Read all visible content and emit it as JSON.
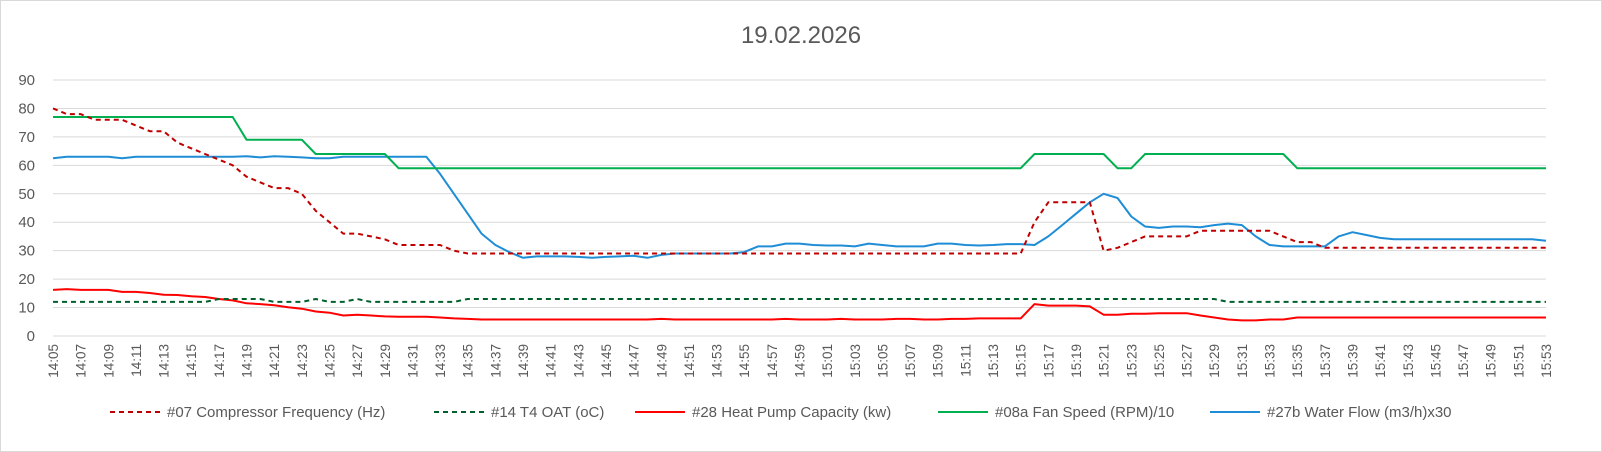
{
  "chart_data": {
    "type": "line",
    "title": "19.02.2026",
    "xlabel": "",
    "ylabel": "",
    "ylim": [
      0,
      90
    ],
    "yticks": [
      0,
      10,
      20,
      30,
      40,
      50,
      60,
      70,
      80,
      90
    ],
    "grid": true,
    "legend_position": "bottom",
    "x": [
      "14:05",
      "14:06",
      "14:07",
      "14:08",
      "14:09",
      "14:10",
      "14:11",
      "14:12",
      "14:13",
      "14:14",
      "14:15",
      "14:16",
      "14:17",
      "14:18",
      "14:19",
      "14:20",
      "14:21",
      "14:22",
      "14:23",
      "14:24",
      "14:25",
      "14:26",
      "14:27",
      "14:28",
      "14:29",
      "14:30",
      "14:31",
      "14:32",
      "14:33",
      "14:34",
      "14:35",
      "14:36",
      "14:37",
      "14:38",
      "14:39",
      "14:40",
      "14:41",
      "14:42",
      "14:43",
      "14:44",
      "14:45",
      "14:46",
      "14:47",
      "14:48",
      "14:49",
      "14:50",
      "14:51",
      "14:52",
      "14:53",
      "14:54",
      "14:55",
      "14:56",
      "14:57",
      "14:58",
      "14:59",
      "15:00",
      "15:01",
      "15:02",
      "15:03",
      "15:04",
      "15:05",
      "15:06",
      "15:07",
      "15:08",
      "15:09",
      "15:10",
      "15:11",
      "15:12",
      "15:13",
      "15:14",
      "15:15",
      "15:16",
      "15:17",
      "15:18",
      "15:19",
      "15:20",
      "15:21",
      "15:22",
      "15:23",
      "15:24",
      "15:25",
      "15:26",
      "15:27",
      "15:28",
      "15:29",
      "15:30",
      "15:31",
      "15:32",
      "15:33",
      "15:34",
      "15:35",
      "15:36",
      "15:37",
      "15:38",
      "15:39",
      "15:40",
      "15:41",
      "15:42",
      "15:43",
      "15:44",
      "15:45",
      "15:46",
      "15:47",
      "15:48",
      "15:49",
      "15:50",
      "15:51",
      "15:52",
      "15:53"
    ],
    "xtick_labels": [
      "14:05",
      "14:07",
      "14:09",
      "14:11",
      "14:13",
      "14:15",
      "14:17",
      "14:19",
      "14:21",
      "14:23",
      "14:25",
      "14:27",
      "14:29",
      "14:31",
      "14:33",
      "14:35",
      "14:37",
      "14:39",
      "14:41",
      "14:43",
      "14:45",
      "14:47",
      "14:49",
      "14:51",
      "14:53",
      "14:55",
      "14:57",
      "14:59",
      "15:01",
      "15:03",
      "15:05",
      "15:07",
      "15:09",
      "15:11",
      "15:13",
      "15:15",
      "15:17",
      "15:19",
      "15:21",
      "15:23",
      "15:25",
      "15:27",
      "15:29",
      "15:31",
      "15:33",
      "15:35",
      "15:37",
      "15:39",
      "15:41",
      "15:43",
      "15:45",
      "15:47",
      "15:49",
      "15:51",
      "15:53"
    ],
    "series": [
      {
        "name": "#07 Compressor  Frequency (Hz)",
        "color": "#c00000",
        "dash": "dashed",
        "values": [
          80,
          78,
          78,
          76,
          76,
          76,
          74,
          72,
          72,
          68,
          66,
          64,
          62,
          60,
          56,
          54,
          52,
          52,
          50,
          44,
          40,
          36,
          36,
          35,
          34,
          32,
          32,
          32,
          32,
          30,
          29,
          29,
          29,
          29,
          29,
          29,
          29,
          29,
          29,
          29,
          29,
          29,
          29,
          29,
          29,
          29,
          29,
          29,
          29,
          29,
          29,
          29,
          29,
          29,
          29,
          29,
          29,
          29,
          29,
          29,
          29,
          29,
          29,
          29,
          29,
          29,
          29,
          29,
          29,
          29,
          29,
          40,
          47,
          47,
          47,
          47,
          30,
          31,
          33,
          35,
          35,
          35,
          35,
          37,
          37,
          37,
          37,
          37,
          37,
          35,
          33,
          33,
          31,
          31,
          31,
          31,
          31,
          31,
          31,
          31,
          31,
          31,
          31,
          31,
          31,
          31,
          31,
          31,
          31
        ]
      },
      {
        "name": "#14 T4 OAT (oC)",
        "color": "#00602b",
        "dash": "dashed",
        "values": [
          12,
          12,
          12,
          12,
          12,
          12,
          12,
          12,
          12,
          12,
          12,
          12,
          13,
          13,
          13,
          13,
          12,
          12,
          12,
          13,
          12,
          12,
          13,
          12,
          12,
          12,
          12,
          12,
          12,
          12,
          13,
          13,
          13,
          13,
          13,
          13,
          13,
          13,
          13,
          13,
          13,
          13,
          13,
          13,
          13,
          13,
          13,
          13,
          13,
          13,
          13,
          13,
          13,
          13,
          13,
          13,
          13,
          13,
          13,
          13,
          13,
          13,
          13,
          13,
          13,
          13,
          13,
          13,
          13,
          13,
          13,
          13,
          13,
          13,
          13,
          13,
          13,
          13,
          13,
          13,
          13,
          13,
          13,
          13,
          13,
          12,
          12,
          12,
          12,
          12,
          12,
          12,
          12,
          12,
          12,
          12,
          12,
          12,
          12,
          12,
          12,
          12,
          12,
          12,
          12,
          12,
          12,
          12,
          12
        ]
      },
      {
        "name": "#28 Heat Pump Capacity (kw)",
        "color": "#ff0000",
        "dash": "solid",
        "values": [
          16.2,
          16.5,
          16.2,
          16.2,
          16.2,
          15.5,
          15.5,
          15.1,
          14.5,
          14.4,
          14,
          13.7,
          13,
          12.5,
          11.5,
          11.2,
          10.8,
          10.1,
          9.6,
          8.6,
          8.2,
          7.2,
          7.5,
          7.2,
          6.9,
          6.8,
          6.8,
          6.8,
          6.5,
          6.2,
          6,
          5.8,
          5.8,
          5.8,
          5.8,
          5.8,
          5.8,
          5.8,
          5.8,
          5.8,
          5.8,
          5.8,
          5.8,
          5.8,
          6,
          5.8,
          5.8,
          5.8,
          5.8,
          5.8,
          5.8,
          5.8,
          5.8,
          6,
          5.8,
          5.8,
          5.8,
          6,
          5.8,
          5.8,
          5.8,
          6,
          6,
          5.8,
          5.8,
          6,
          6,
          6.2,
          6.2,
          6.2,
          6.2,
          11.2,
          10.7,
          10.7,
          10.7,
          10.4,
          7.5,
          7.5,
          7.8,
          7.8,
          8,
          8,
          8,
          7.2,
          6.5,
          5.8,
          5.5,
          5.5,
          5.8,
          5.8,
          6.5,
          6.5,
          6.5,
          6.5,
          6.5,
          6.5,
          6.5,
          6.5,
          6.5,
          6.5,
          6.5,
          6.5,
          6.5,
          6.5,
          6.5,
          6.5,
          6.5,
          6.5,
          6.5
        ]
      },
      {
        "name": "#08a Fan Speed (RPM)/10",
        "color": "#00b050",
        "dash": "solid",
        "values": [
          77,
          77,
          77,
          77,
          77,
          77,
          77,
          77,
          77,
          77,
          77,
          77,
          77,
          77,
          69,
          69,
          69,
          69,
          69,
          64,
          64,
          64,
          64,
          64,
          64,
          59,
          59,
          59,
          59,
          59,
          59,
          59,
          59,
          59,
          59,
          59,
          59,
          59,
          59,
          59,
          59,
          59,
          59,
          59,
          59,
          59,
          59,
          59,
          59,
          59,
          59,
          59,
          59,
          59,
          59,
          59,
          59,
          59,
          59,
          59,
          59,
          59,
          59,
          59,
          59,
          59,
          59,
          59,
          59,
          59,
          59,
          64,
          64,
          64,
          64,
          64,
          64,
          59,
          59,
          64,
          64,
          64,
          64,
          64,
          64,
          64,
          64,
          64,
          64,
          64,
          59,
          59,
          59,
          59,
          59,
          59,
          59,
          59,
          59,
          59,
          59,
          59,
          59,
          59,
          59,
          59,
          59,
          59,
          59
        ]
      },
      {
        "name": "#27b Water Flow (m3/h)x30",
        "color": "#1f8dd6",
        "dash": "solid",
        "values": [
          62.5,
          63,
          63,
          63,
          63,
          62.5,
          63,
          63,
          63,
          63,
          63,
          63,
          63,
          63,
          63.2,
          62.8,
          63.2,
          63,
          62.8,
          62.5,
          62.5,
          63,
          63,
          63,
          63,
          63,
          63,
          63,
          57,
          50,
          43,
          36,
          32,
          29.5,
          27.5,
          28,
          28,
          28,
          27.8,
          27.5,
          27.8,
          28,
          28.2,
          27.5,
          28.5,
          29,
          29,
          29,
          29,
          29,
          29.5,
          31.5,
          31.5,
          32.5,
          32.5,
          32,
          31.8,
          31.8,
          31.5,
          32.5,
          32,
          31.5,
          31.5,
          31.5,
          32.5,
          32.5,
          32,
          31.8,
          32,
          32.3,
          32.3,
          32,
          35,
          39,
          43,
          47,
          50,
          48.5,
          42,
          38.5,
          38,
          38.5,
          38.5,
          38.2,
          39,
          39.5,
          39,
          35,
          32,
          31.5,
          31.5,
          31.5,
          31.5,
          35,
          36.5,
          35.5,
          34.5,
          34,
          34,
          34,
          34,
          34,
          34,
          34,
          34,
          34,
          34,
          34,
          33.5
        ]
      }
    ]
  }
}
